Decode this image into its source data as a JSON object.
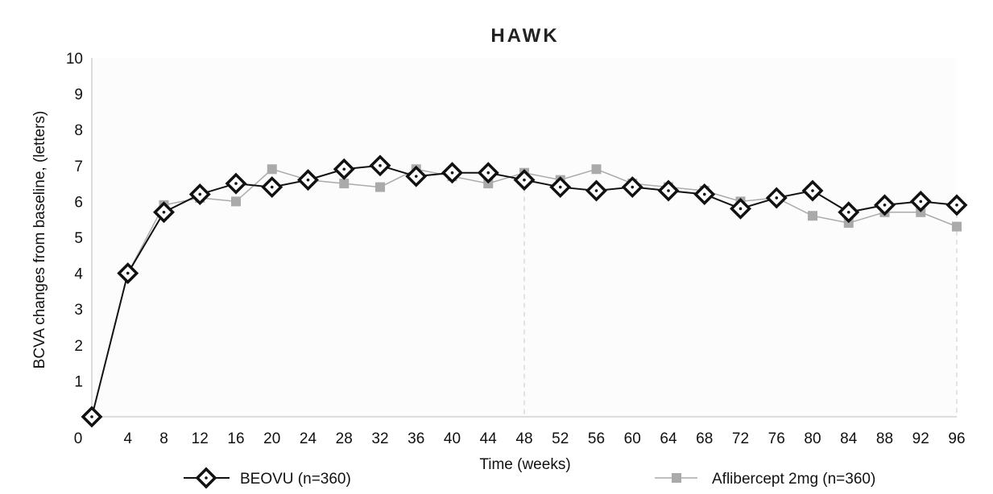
{
  "chart_data": {
    "type": "line",
    "title": "HAWK",
    "xlabel": "Time (weeks)",
    "ylabel": "BCVA changes from baseline, (letters)",
    "x": [
      0,
      4,
      8,
      12,
      16,
      20,
      24,
      28,
      32,
      36,
      40,
      44,
      48,
      52,
      56,
      60,
      64,
      68,
      72,
      76,
      80,
      84,
      88,
      92,
      96
    ],
    "xticks": [
      "0",
      "4",
      "8",
      "12",
      "16",
      "20",
      "24",
      "28",
      "32",
      "36",
      "40",
      "44",
      "48",
      "52",
      "56",
      "60",
      "64",
      "68",
      "72",
      "76",
      "80",
      "84",
      "88",
      "92",
      "96"
    ],
    "yticks": [
      "1",
      "2",
      "3",
      "4",
      "5",
      "6",
      "7",
      "8",
      "9",
      "10"
    ],
    "xlim": [
      0,
      96
    ],
    "ylim": [
      0,
      10
    ],
    "reference_lines_x": [
      48,
      96
    ],
    "grid": false,
    "legend_position": "bottom",
    "series": [
      {
        "name": "BEOVU (n=360)",
        "color": "#111111",
        "marker": "diamond",
        "values": [
          0,
          4.0,
          5.7,
          6.2,
          6.5,
          6.4,
          6.6,
          6.9,
          7.0,
          6.7,
          6.8,
          6.8,
          6.6,
          6.4,
          6.3,
          6.4,
          6.3,
          6.2,
          5.8,
          6.1,
          6.3,
          5.7,
          5.9,
          6.0,
          5.9
        ]
      },
      {
        "name": "Aflibercept 2mg (n=360)",
        "color": "#aaaaaa",
        "marker": "square",
        "values": [
          0,
          4.0,
          5.9,
          6.1,
          6.0,
          6.9,
          6.6,
          6.5,
          6.4,
          6.9,
          6.7,
          6.5,
          6.8,
          6.6,
          6.9,
          6.5,
          6.4,
          6.3,
          6.0,
          6.1,
          5.6,
          5.4,
          5.7,
          5.7,
          5.3
        ]
      }
    ]
  }
}
